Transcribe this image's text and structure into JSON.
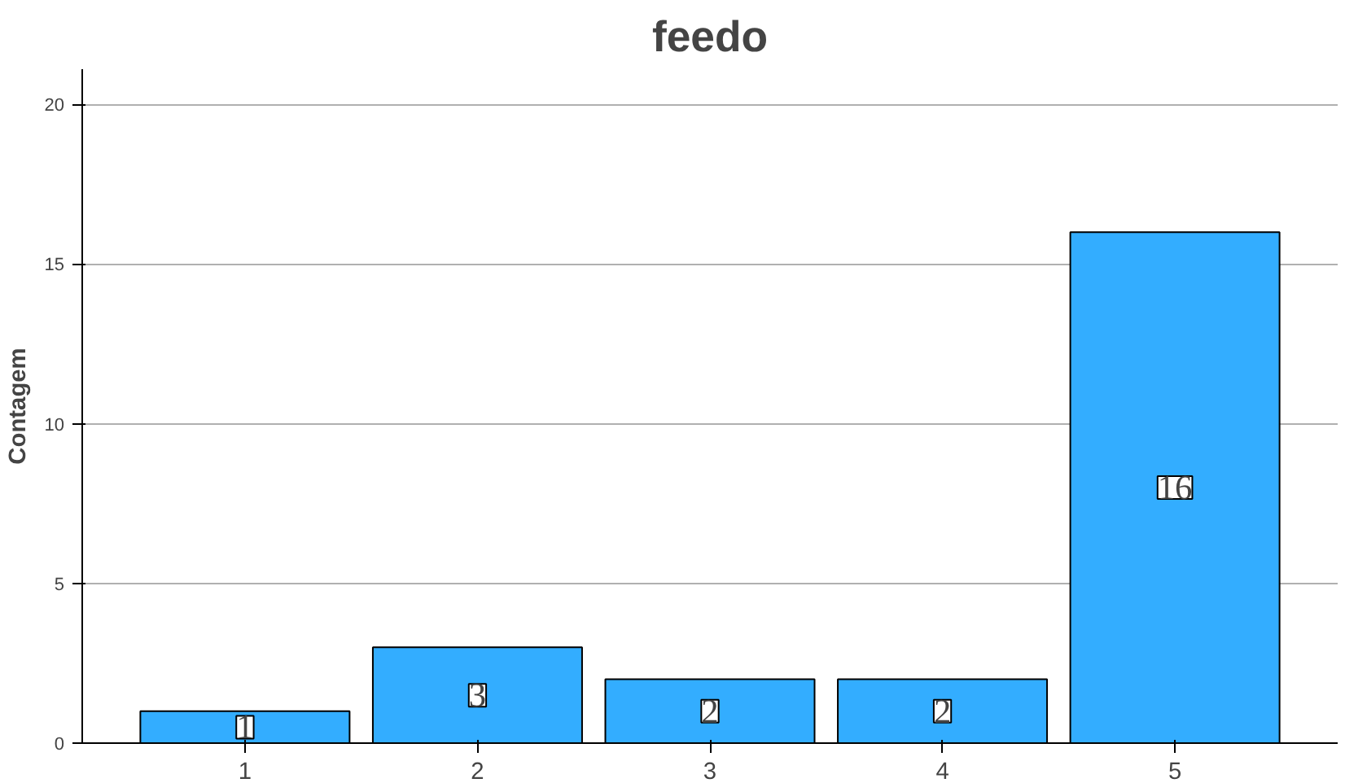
{
  "chart_data": {
    "type": "bar",
    "title": "feedo",
    "ylabel": "Contagem",
    "categories": [
      "1",
      "2",
      "3",
      "4",
      "5"
    ],
    "values": [
      1,
      3,
      2,
      2,
      16
    ],
    "color": "#33adff",
    "ylim": [
      0,
      21.1
    ],
    "yticks": [
      0,
      5,
      10,
      15,
      20
    ],
    "grid": "y",
    "data_labels": true
  }
}
